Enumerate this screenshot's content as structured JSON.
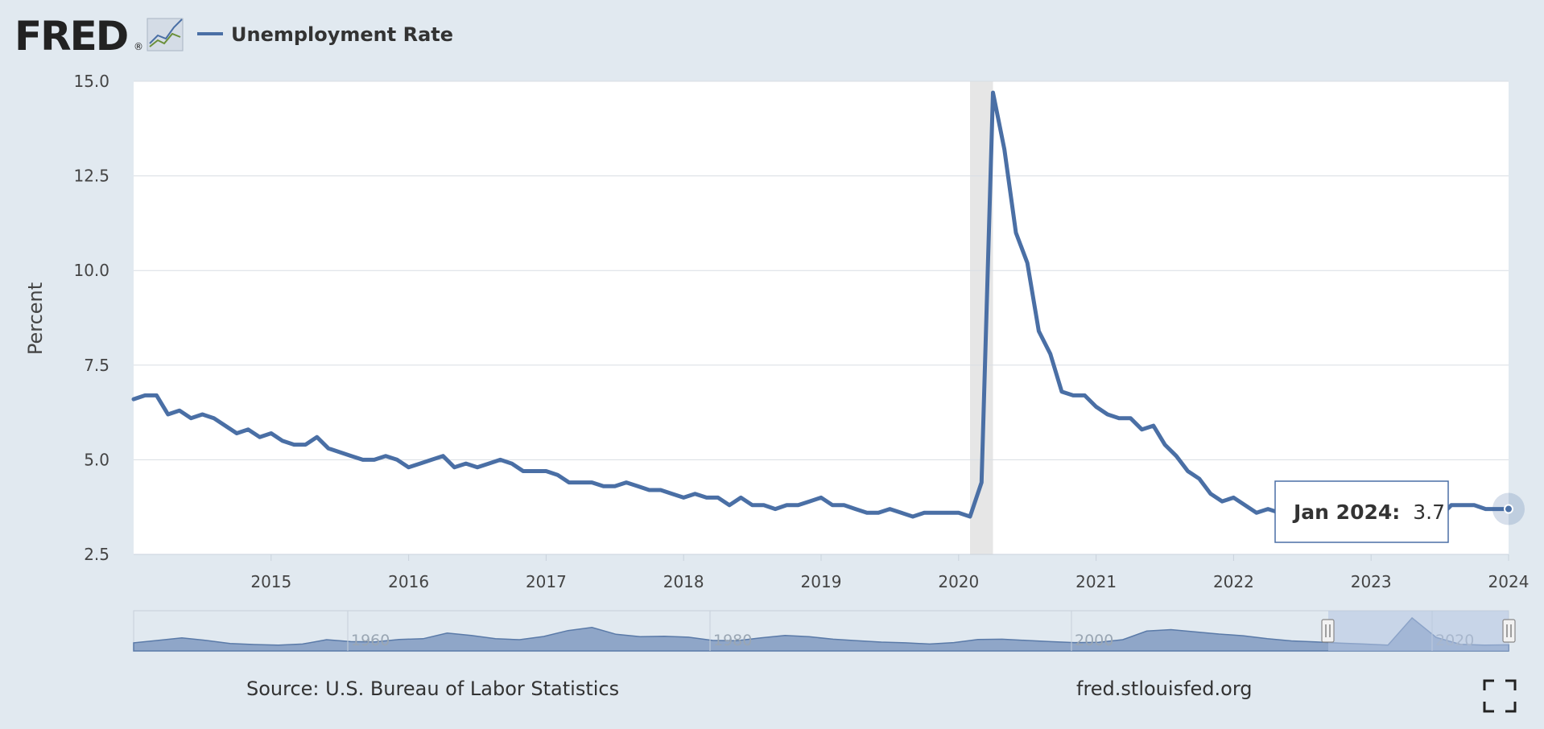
{
  "header": {
    "logo_text": "FRED",
    "logo_registered": "®",
    "legend_label": "Unemployment Rate"
  },
  "colors": {
    "series": "#4a6fa5",
    "background": "#e1e9f0",
    "plot_bg": "#ffffff",
    "recession": "#e6e6e6",
    "navigator_fill": "#8fa6c8",
    "navigator_window": "#b4c4e1"
  },
  "chart_data": {
    "type": "line",
    "title": "",
    "xlabel": "",
    "ylabel": "Percent",
    "ylim": [
      2.5,
      15.0
    ],
    "y_ticks": [
      "2.5",
      "5.0",
      "7.5",
      "10.0",
      "12.5",
      "15.0"
    ],
    "x_ticks": [
      "2015",
      "2016",
      "2017",
      "2018",
      "2019",
      "2020",
      "2021",
      "2022",
      "2023",
      "2024"
    ],
    "x_start": "2014-01",
    "x_end": "2024-01",
    "grid": true,
    "legend": "top-left",
    "recession_band": [
      "2020-02",
      "2020-04"
    ],
    "series": [
      {
        "name": "Unemployment Rate",
        "frequency": "monthly",
        "values": [
          6.6,
          6.7,
          6.7,
          6.2,
          6.3,
          6.1,
          6.2,
          6.1,
          5.9,
          5.7,
          5.8,
          5.6,
          5.7,
          5.5,
          5.4,
          5.4,
          5.6,
          5.3,
          5.2,
          5.1,
          5.0,
          5.0,
          5.1,
          5.0,
          4.8,
          4.9,
          5.0,
          5.1,
          4.8,
          4.9,
          4.8,
          4.9,
          5.0,
          4.9,
          4.7,
          4.7,
          4.7,
          4.6,
          4.4,
          4.4,
          4.4,
          4.3,
          4.3,
          4.4,
          4.3,
          4.2,
          4.2,
          4.1,
          4.0,
          4.1,
          4.0,
          4.0,
          3.8,
          4.0,
          3.8,
          3.8,
          3.7,
          3.8,
          3.8,
          3.9,
          4.0,
          3.8,
          3.8,
          3.7,
          3.6,
          3.6,
          3.7,
          3.6,
          3.5,
          3.6,
          3.6,
          3.6,
          3.6,
          3.5,
          4.4,
          14.7,
          13.2,
          11.0,
          10.2,
          8.4,
          7.8,
          6.8,
          6.7,
          6.7,
          6.4,
          6.2,
          6.1,
          6.1,
          5.8,
          5.9,
          5.4,
          5.1,
          4.7,
          4.5,
          4.1,
          3.9,
          4.0,
          3.8,
          3.6,
          3.7,
          3.6,
          3.6,
          3.5,
          3.6,
          3.5,
          3.6,
          3.6,
          3.5,
          3.4,
          3.6,
          3.5,
          3.4,
          3.7,
          3.6,
          3.5,
          3.8,
          3.8,
          3.8,
          3.7,
          3.7,
          3.7
        ]
      }
    ],
    "tooltip": {
      "date_label": "Jan 2024:",
      "value_label": "3.7"
    },
    "navigator": {
      "labels": [
        "1960",
        "1980",
        "2000",
        "2020"
      ]
    }
  },
  "footer": {
    "source": "Source: U.S. Bureau of Labor Statistics",
    "site": "fred.stlouisfed.org"
  }
}
